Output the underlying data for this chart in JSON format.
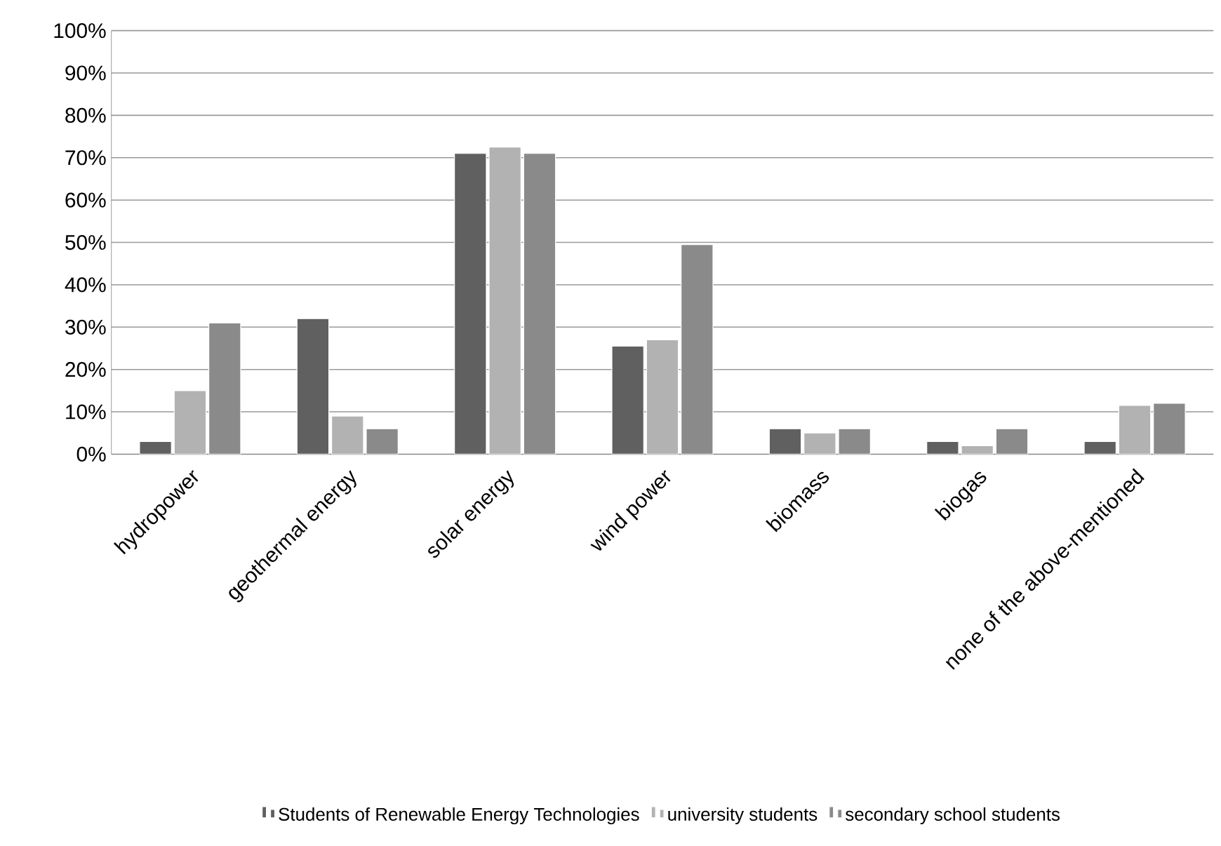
{
  "chart_data": {
    "type": "bar",
    "categories": [
      "hydropower",
      "geothermal energy",
      "solar energy",
      "wind power",
      "biomass",
      "biogas",
      "none of the above-mentioned"
    ],
    "series": [
      {
        "name": "Students of Renewable Energy Technologies",
        "color": "#606060",
        "values": [
          3,
          32,
          71,
          25.5,
          6,
          3,
          3
        ]
      },
      {
        "name": "university students",
        "color": "#b2b2b2",
        "values": [
          15,
          9,
          72.5,
          27,
          5,
          2,
          11.5
        ]
      },
      {
        "name": "secondary school students",
        "color": "#8a8a8a",
        "values": [
          31,
          6,
          71,
          49.5,
          6,
          6,
          12
        ]
      }
    ],
    "ylim": [
      0,
      100
    ],
    "yticks": [
      {
        "value": 0,
        "label": "0%"
      },
      {
        "value": 10,
        "label": "10%"
      },
      {
        "value": 20,
        "label": "20%"
      },
      {
        "value": 30,
        "label": "30%"
      },
      {
        "value": 40,
        "label": "40%"
      },
      {
        "value": 50,
        "label": "50%"
      },
      {
        "value": 60,
        "label": "60%"
      },
      {
        "value": 70,
        "label": "70%"
      },
      {
        "value": 80,
        "label": "80%"
      },
      {
        "value": 90,
        "label": "90%"
      },
      {
        "value": 100,
        "label": "100%"
      }
    ],
    "grid": "y",
    "legend": "bottom"
  }
}
